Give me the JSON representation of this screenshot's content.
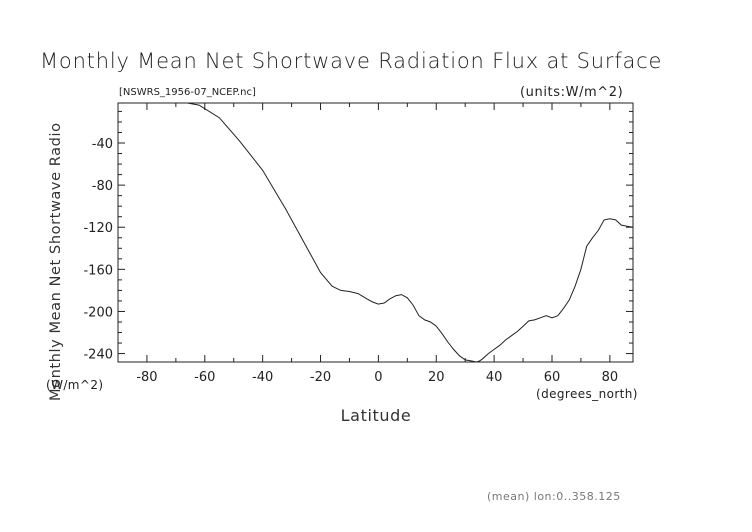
{
  "chart_data": {
    "type": "line",
    "title": "Monthly Mean Net Shortwave Radiation Flux at Surface",
    "source_label": "[NSWRS_1956-07_NCEP.nc]",
    "units_label": "(units:W/m^2)",
    "xlabel": "Latitude",
    "xunits": "(degrees_north)",
    "ylabel": "Monthly Mean Net Shortwave Radio",
    "yunits": "(W/m^2)",
    "footer": "(mean) lon:0..358.125",
    "xlim": [
      -90,
      88
    ],
    "ylim": [
      -248,
      -2
    ],
    "x_ticks": [
      -80,
      -60,
      -40,
      -20,
      0,
      20,
      40,
      60,
      80
    ],
    "y_ticks": [
      -40,
      -80,
      -120,
      -160,
      -200,
      -240
    ],
    "grid": false,
    "x": [
      -88,
      -80,
      -70,
      -66,
      -62,
      -55,
      -48,
      -40,
      -32,
      -25,
      -20,
      -16,
      -13,
      -10,
      -7,
      -4,
      -2,
      0,
      2,
      4,
      6,
      8,
      10,
      12,
      14,
      16,
      18,
      20,
      22,
      24,
      26,
      28,
      30,
      32,
      34,
      35,
      36,
      38,
      40,
      42,
      44,
      46,
      48,
      50,
      52,
      54,
      56,
      58,
      60,
      62,
      64,
      66,
      68,
      70,
      72,
      74,
      76,
      78,
      80,
      82,
      84,
      86,
      88
    ],
    "y": [
      -2,
      -2,
      -2,
      -2,
      -4,
      -16,
      -38,
      -66,
      -103,
      -138,
      -163,
      -176,
      -180,
      -181,
      -183,
      -188,
      -191,
      -193,
      -192,
      -188,
      -185,
      -184,
      -187,
      -194,
      -204,
      -208,
      -210,
      -214,
      -221,
      -229,
      -236,
      -242,
      -246,
      -247,
      -248,
      -247,
      -245,
      -240,
      -236,
      -232,
      -227,
      -223,
      -219,
      -214,
      -209,
      -208,
      -206,
      -204,
      -206,
      -204,
      -197,
      -189,
      -176,
      -160,
      -138,
      -130,
      -123,
      -113,
      -112,
      -113,
      -118,
      -119,
      -120
    ]
  }
}
